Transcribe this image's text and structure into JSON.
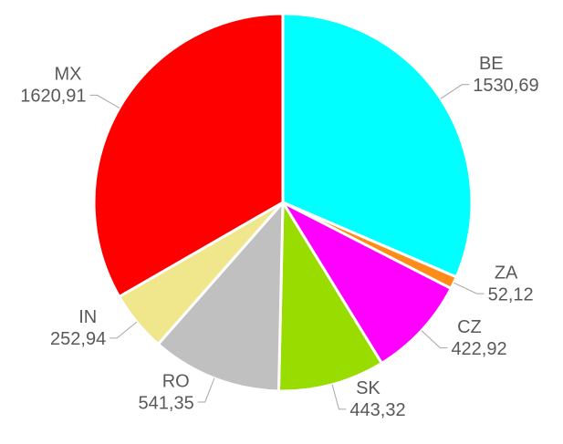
{
  "chart_data": {
    "type": "pie",
    "categories": [
      "BE",
      "ZA",
      "CZ",
      "SK",
      "RO",
      "IN",
      "MX"
    ],
    "values": [
      1530.69,
      52.12,
      422.92,
      443.32,
      541.35,
      252.94,
      1620.91
    ],
    "value_labels": [
      "1530,69",
      "52,12",
      "422,92",
      "443,32",
      "541,35",
      "252,94",
      "1620,91"
    ],
    "colors": [
      "#00ffff",
      "#ff8c1a",
      "#ff00ff",
      "#99dd00",
      "#c0c0c0",
      "#f0e68c",
      "#ff0000"
    ]
  }
}
